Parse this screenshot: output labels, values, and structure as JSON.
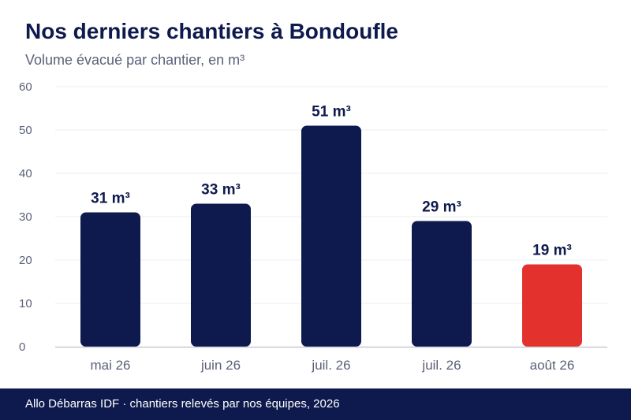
{
  "header": {
    "title": "Nos derniers chantiers à Bondoufle",
    "subtitle": "Volume évacué par chantier, en m³"
  },
  "chart_data": {
    "type": "bar",
    "categories": [
      "mai 26",
      "juin 26",
      "juil. 26",
      "juil. 26",
      "août 26"
    ],
    "values": [
      31,
      33,
      51,
      29,
      19
    ],
    "value_labels": [
      "31 m³",
      "33 m³",
      "51 m³",
      "29 m³",
      "19 m³"
    ],
    "ylim": [
      0,
      60
    ],
    "yticks": [
      "0",
      "10",
      "20",
      "30",
      "40",
      "50",
      "60"
    ],
    "grid": true,
    "legend": "none",
    "colors": {
      "bar": "#0e1a4d",
      "highlight": "#e3312d",
      "highlight_index": 4,
      "label": "#0e1a4d",
      "tick": "#5b6178",
      "grid": "#ebecf2",
      "axis": "#c9cad6"
    }
  },
  "footer": {
    "text": "Allo Débarras IDF · chantiers relevés par nos équipes, 2026"
  }
}
